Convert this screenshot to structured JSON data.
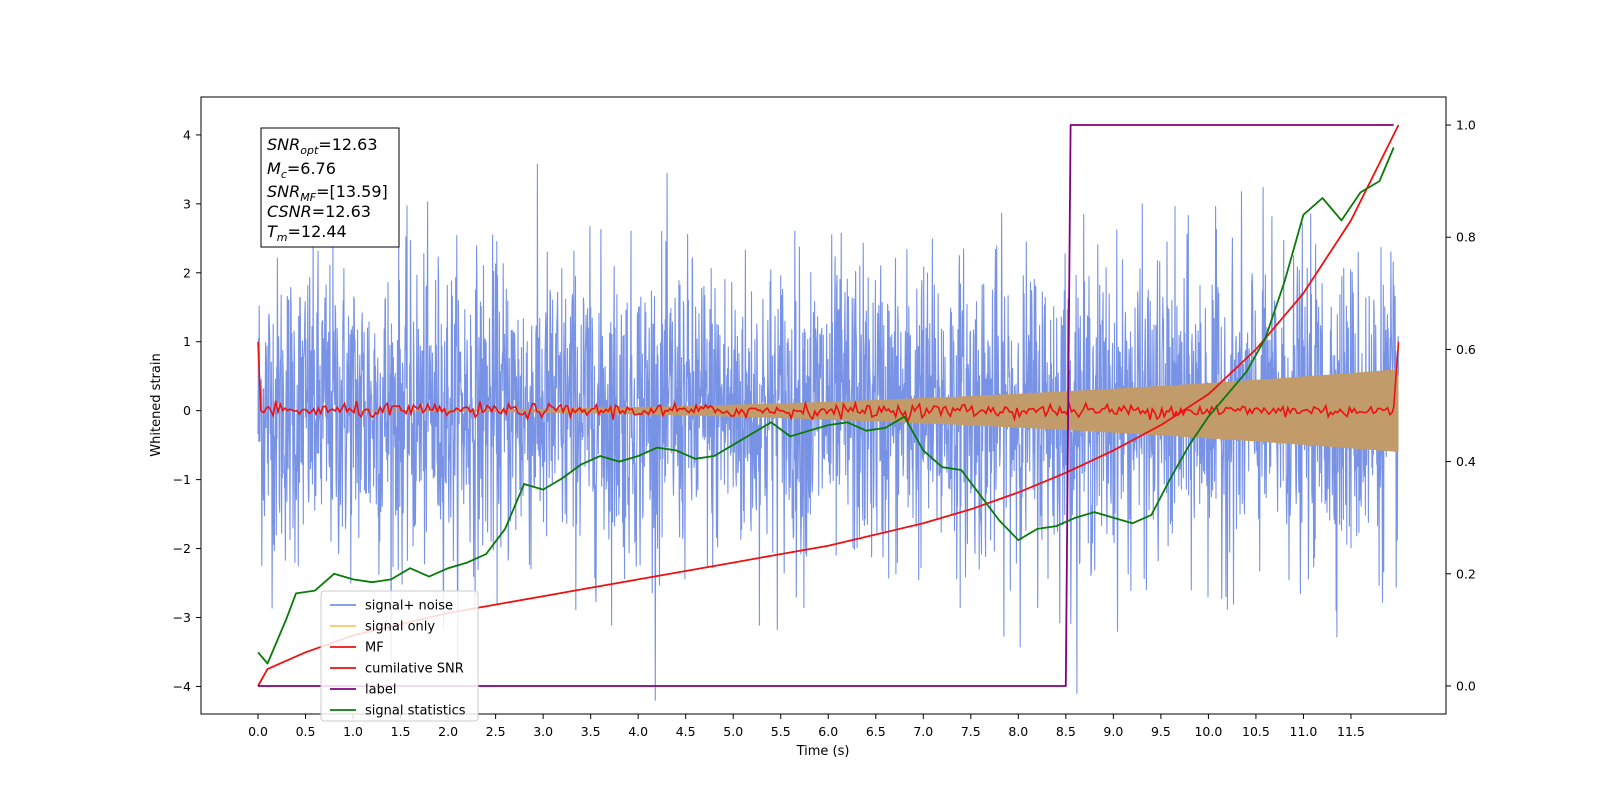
{
  "chart_data": {
    "type": "line",
    "xlabel": "Time (s)",
    "ylabel": "Whitened strain",
    "xlim": [
      -0.6,
      12.5
    ],
    "ylim": [
      -4.4,
      4.55
    ],
    "y2lim": [
      -0.05,
      1.05
    ],
    "x_ticks": [
      "0.0",
      "0.5",
      "1.0",
      "1.5",
      "2.0",
      "2.5",
      "3.0",
      "3.5",
      "4.0",
      "4.5",
      "5.0",
      "5.5",
      "6.0",
      "6.5",
      "7.0",
      "7.5",
      "8.0",
      "8.5",
      "9.0",
      "9.5",
      "10.0",
      "10.5",
      "11.0",
      "11.5"
    ],
    "y_ticks": [
      "−4",
      "−3",
      "−2",
      "−1",
      "0",
      "1",
      "2",
      "3",
      "4"
    ],
    "y2_ticks": [
      "0.0",
      "0.2",
      "0.4",
      "0.6",
      "0.8",
      "1.0"
    ],
    "annotation": {
      "snr_opt": {
        "base": "SNR",
        "sub": "opt",
        "value": "=12.63"
      },
      "mc": {
        "base": "M",
        "sub": "c",
        "value": "=6.76"
      },
      "snr_mf": {
        "base": "SNR",
        "sub": "MF",
        "value": "=[13.59]"
      },
      "csnr": {
        "base": "CSNR",
        "sub": "",
        "value": "=12.63"
      },
      "tm": {
        "base": "T",
        "sub": "m",
        "value": "=12.44"
      }
    },
    "legend": {
      "placement": "lower-left",
      "entries": [
        {
          "label": "signal+ noise",
          "color": "#7893e6"
        },
        {
          "label": "signal only",
          "color": "#f5c76e"
        },
        {
          "label": "MF",
          "color": "#ee1111"
        },
        {
          "label": "cumilative SNR",
          "color": "#ee1111"
        },
        {
          "label": "label",
          "color": "#800080"
        },
        {
          "label": "signal statistics",
          "color": "#0a7a0a"
        }
      ]
    },
    "series": [
      {
        "name": "signal+ noise",
        "axis": "left",
        "color": "#7893e6",
        "envelope": {
          "x": [
            0,
            12.0
          ],
          "typical_abs": 2.4,
          "max_abs": 4.2
        }
      },
      {
        "name": "signal only",
        "axis": "left",
        "color": "#c29b6a",
        "envelope": {
          "x": [
            0,
            12.0
          ],
          "amplitude_start": 0.0,
          "amplitude_end": 0.6
        }
      },
      {
        "name": "MF",
        "axis": "left",
        "color": "#ee1111",
        "x": [
          0.0,
          0.03,
          0.1,
          11.95,
          12.0
        ],
        "y": [
          1.0,
          0.0,
          0.05,
          0.05,
          1.0
        ]
      },
      {
        "name": "cumilative SNR",
        "axis": "right",
        "color": "#ee1111",
        "x": [
          0.0,
          0.1,
          0.5,
          1.0,
          1.5,
          2.0,
          2.5,
          3.0,
          3.5,
          4.0,
          4.5,
          5.0,
          5.5,
          6.0,
          6.5,
          7.0,
          7.5,
          8.0,
          8.5,
          9.0,
          9.5,
          10.0,
          10.5,
          11.0,
          11.5,
          12.0
        ],
        "y": [
          0.0,
          0.03,
          0.06,
          0.09,
          0.11,
          0.13,
          0.145,
          0.16,
          0.175,
          0.19,
          0.205,
          0.22,
          0.235,
          0.25,
          0.27,
          0.29,
          0.315,
          0.345,
          0.38,
          0.42,
          0.465,
          0.52,
          0.6,
          0.7,
          0.83,
          1.0
        ]
      },
      {
        "name": "label",
        "axis": "right",
        "color": "#800080",
        "x": [
          0.0,
          8.5,
          8.55,
          11.95
        ],
        "y": [
          0.0,
          0.0,
          1.0,
          1.0
        ]
      },
      {
        "name": "signal statistics",
        "axis": "right",
        "color": "#0a7a0a",
        "x": [
          0.0,
          0.1,
          0.2,
          0.3,
          0.4,
          0.6,
          0.8,
          1.0,
          1.2,
          1.4,
          1.6,
          1.8,
          2.0,
          2.2,
          2.4,
          2.6,
          2.8,
          3.0,
          3.2,
          3.4,
          3.6,
          3.8,
          4.0,
          4.2,
          4.4,
          4.6,
          4.8,
          5.0,
          5.2,
          5.4,
          5.6,
          5.8,
          6.0,
          6.2,
          6.4,
          6.6,
          6.8,
          7.0,
          7.2,
          7.4,
          7.6,
          7.8,
          8.0,
          8.2,
          8.4,
          8.6,
          8.8,
          9.0,
          9.2,
          9.4,
          9.6,
          9.8,
          10.0,
          10.2,
          10.4,
          10.6,
          10.8,
          11.0,
          11.2,
          11.4,
          11.6,
          11.8,
          11.95
        ],
        "y": [
          0.06,
          0.04,
          0.08,
          0.12,
          0.165,
          0.17,
          0.2,
          0.19,
          0.185,
          0.19,
          0.21,
          0.195,
          0.21,
          0.22,
          0.235,
          0.28,
          0.36,
          0.35,
          0.37,
          0.395,
          0.41,
          0.4,
          0.41,
          0.425,
          0.42,
          0.405,
          0.41,
          0.43,
          0.45,
          0.47,
          0.445,
          0.455,
          0.465,
          0.47,
          0.455,
          0.46,
          0.48,
          0.42,
          0.39,
          0.385,
          0.34,
          0.295,
          0.26,
          0.28,
          0.285,
          0.3,
          0.31,
          0.3,
          0.29,
          0.305,
          0.37,
          0.43,
          0.48,
          0.52,
          0.56,
          0.62,
          0.72,
          0.84,
          0.87,
          0.83,
          0.88,
          0.9,
          0.96
        ]
      }
    ]
  }
}
